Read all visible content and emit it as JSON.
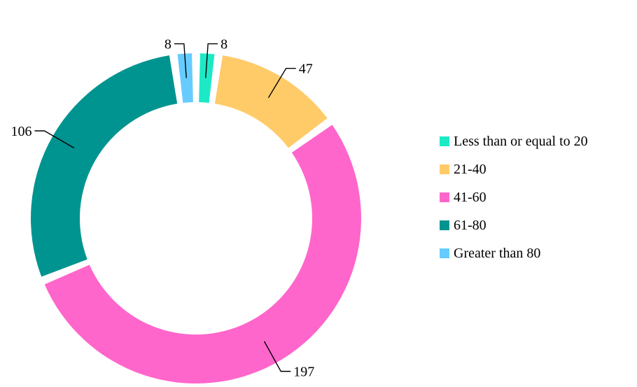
{
  "chart_data": {
    "type": "pie",
    "variant": "donut",
    "title": "",
    "categories": [
      "Less than or equal to 20",
      "21-40",
      "41-60",
      "61-80",
      "Greater than 80"
    ],
    "values": [
      8,
      47,
      197,
      106,
      8
    ],
    "colors": [
      "#1de9c6",
      "#ffcb69",
      "#ff66cc",
      "#009490",
      "#66ccff"
    ],
    "data_labels": [
      "8",
      "47",
      "197",
      "106",
      "8"
    ],
    "legend": {
      "placement": "right",
      "entries": [
        "Less than or equal to 20",
        "21-40",
        "41-60",
        "61-80",
        "Greater than 80"
      ]
    }
  }
}
